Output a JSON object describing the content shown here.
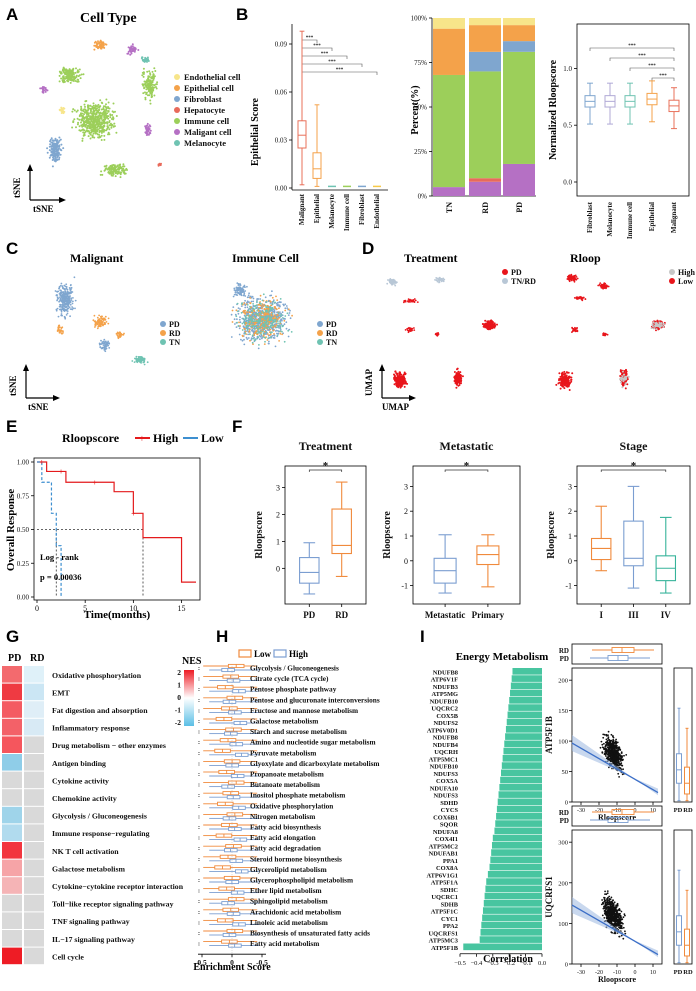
{
  "panels": {
    "A": {
      "letter": "A",
      "title": "Cell Type",
      "xaxis": "tSNE",
      "yaxis": "tSNE",
      "legend": [
        {
          "label": "Endothelial cell",
          "color": "#f7e58a"
        },
        {
          "label": "Epithelial cell",
          "color": "#f4a24a"
        },
        {
          "label": "Fibroblast",
          "color": "#7fa6cf"
        },
        {
          "label": "Hepatocyte",
          "color": "#e86a5b"
        },
        {
          "label": "Immune cell",
          "color": "#9ccf5a"
        },
        {
          "label": "Maligant cell",
          "color": "#b570c4"
        },
        {
          "label": "Melanocyte",
          "color": "#6fc3b2"
        }
      ]
    },
    "B": {
      "letter": "B",
      "epithelial": {
        "ylabel": "Epithelial Score",
        "categories": [
          "Malignant",
          "Epithelial",
          "Melanocyte",
          "Immune cell",
          "Fibroblast",
          "Endothelial"
        ],
        "yticks": [
          "0.00",
          "0.03",
          "0.06",
          "0.09"
        ],
        "sig": "***"
      },
      "stacked": {
        "ylabel": "Percent(%)",
        "categories": [
          "TN",
          "RD",
          "PD"
        ],
        "yticks": [
          "0%",
          "25%",
          "50%",
          "75%",
          "100%"
        ]
      },
      "rloop": {
        "ylabel": "Normalized Rloopscore",
        "categories": [
          "Fibroblast",
          "Melanocyte",
          "Immune cell",
          "Epithelial",
          "Malignant"
        ],
        "yticks": [
          "0.0",
          "0.5",
          "1.0"
        ],
        "sig": "***"
      }
    },
    "C": {
      "letter": "C",
      "left_title": "Malignant",
      "right_title": "Immune Cell",
      "legend": [
        {
          "label": "PD",
          "color": "#7fa6cf"
        },
        {
          "label": "RD",
          "color": "#f4a24a"
        },
        {
          "label": "TN",
          "color": "#6fc3b2"
        }
      ],
      "xaxis": "tSNE",
      "yaxis": "tSNE"
    },
    "D": {
      "letter": "D",
      "left_title": "Treatment",
      "right_title": "Rloop",
      "left_legend": [
        {
          "label": "PD",
          "color": "#e8151b"
        },
        {
          "label": "TN/RD",
          "color": "#b8c7d6"
        }
      ],
      "right_legend": [
        {
          "label": "High",
          "color": "#c7c7c7"
        },
        {
          "label": "Low",
          "color": "#e8151b"
        }
      ],
      "xaxis": "UMAP",
      "yaxis": "UMAP"
    },
    "E": {
      "letter": "E",
      "legend_title": "Rloopscore",
      "legend_high": "High",
      "legend_low": "Low",
      "ylabel": "Overall Response",
      "xlabel": "Time(months)",
      "yticks": [
        "0.00",
        "0.25",
        "0.50",
        "0.75",
        "1.00"
      ],
      "xticks": [
        "0",
        "5",
        "10",
        "15"
      ],
      "test_name": "Log - rank",
      "p_value": "p = 0.00036"
    },
    "F": {
      "letter": "F",
      "ylabel": "Rloopscore",
      "treatment": {
        "title": "Treatment",
        "categories": [
          "PD",
          "RD"
        ],
        "yticks": [
          "0",
          "1",
          "2",
          "3"
        ],
        "sig": "*"
      },
      "metastatic": {
        "title": "Metastatic",
        "categories": [
          "Metastatic",
          "Primary"
        ],
        "yticks": [
          "-1",
          "0",
          "1",
          "2",
          "3"
        ],
        "sig": "*"
      },
      "stage": {
        "title": "Stage",
        "categories": [
          "I",
          "III",
          "IV"
        ],
        "yticks": [
          "-1",
          "0",
          "1",
          "2",
          "3"
        ],
        "sig": "*"
      }
    },
    "G": {
      "letter": "G",
      "col_labels": [
        "PD",
        "RD"
      ],
      "legend_title": "NES",
      "legend_ticks": [
        "2",
        "1",
        "0",
        "-1",
        "-2"
      ],
      "rows": [
        {
          "label": "Oxidative phosphorylation",
          "pd": "#f36a6e",
          "rd": "#dff1f9"
        },
        {
          "label": "EMT",
          "pd": "#ef3a42",
          "rd": "#cbe6f4"
        },
        {
          "label": "Fat digestion and absorption",
          "pd": "#f45b62",
          "rd": "#dfeef7"
        },
        {
          "label": "Inflammatory response",
          "pd": "#f36168",
          "rd": "#d8eaf5"
        },
        {
          "label": "Drug metabolism − other enzymes",
          "pd": "#f5565d",
          "rd": "#d9d9d9"
        },
        {
          "label": "Antigen binding",
          "pd": "#8fcde8",
          "rd": "#d9d9d9"
        },
        {
          "label": "Cytokine activity",
          "pd": "#d9d9d9",
          "rd": "#d9d9d9"
        },
        {
          "label": "Chemokine activity",
          "pd": "#d9d9d9",
          "rd": "#d9d9d9"
        },
        {
          "label": "Glycolysis / Gluconeogenesis",
          "pd": "#9fd4ea",
          "rd": "#d9d9d9"
        },
        {
          "label": "Immune response−regulating",
          "pd": "#b1dbee",
          "rd": "#d9d9d9"
        },
        {
          "label": "NK T cell activation",
          "pd": "#f2353e",
          "rd": "#d9d9d9"
        },
        {
          "label": "Galactose metabolism",
          "pd": "#f6a4a7",
          "rd": "#d9d9d9"
        },
        {
          "label": "Cytokine−cytokine receptor interaction",
          "pd": "#f5b4b6",
          "rd": "#d9d9d9"
        },
        {
          "label": "Toll−like receptor signaling pathway",
          "pd": "#d9d9d9",
          "rd": "#d9d9d9"
        },
        {
          "label": "TNF signaling pathway",
          "pd": "#d9d9d9",
          "rd": "#d9d9d9"
        },
        {
          "label": "IL−17 signaling pathway",
          "pd": "#d9d9d9",
          "rd": "#d9d9d9"
        },
        {
          "label": "Cell cycle",
          "pd": "#ee1c25",
          "rd": "#d9d9d9"
        }
      ]
    },
    "H": {
      "letter": "H",
      "legend_low": "Low",
      "legend_high": "High",
      "xlabel": "Enrichment Score",
      "xticks": [
        "0.5",
        "0",
        "-0.5"
      ],
      "rows": [
        "Glycolysis / Gluconeogenesis",
        "Citrate cycle (TCA cycle)",
        "Pentose phosphate pathway",
        "Pentose and glucuronate interconversions",
        "Fructose and mannose metabolism",
        "Galactose metabolism",
        "Starch and sucrose metabolism",
        "Amino and nucleotide sugar metabolism",
        "Pyruvate metabolism",
        "Glyoxylate and dicarboxylate metabolism",
        "Propanoate metabolism",
        "Butanoate metabolism",
        "Inositol phosphate metabolism",
        "Oxidative phosphorylation",
        "Nitrogen metabolism",
        "Fatty acid biosynthesis",
        "Fatty acid elongation",
        "Fatty acid degradation",
        "Steroid hormone biosynthesis",
        "Glycerolipid metabolism",
        "Glycerophospholipid metabolism",
        "Ether lipid metabolism",
        "Sphingolipid metabolism",
        "Arachidonic acid metabolism",
        "Linoleic acid metabolism",
        "Biosynthesis of unsaturated fatty acids",
        "Fatty acid metabolism"
      ]
    },
    "I": {
      "letter": "I",
      "title": "Energy Metabolism",
      "xlabel": "Correlation",
      "xticks": [
        "−0.5",
        "−0.4",
        "−0.3",
        "−0.2",
        "−0.1",
        "0.0"
      ],
      "scatter_top": {
        "ylabel": "ATP5F1B",
        "xlabel": "Rloopscore",
        "yticks": [
          "0",
          "50",
          "100",
          "150",
          "200"
        ],
        "xticks": [
          "-30",
          "-20",
          "-10",
          "0",
          "10"
        ],
        "box_labels": [
          "RD",
          "PD"
        ],
        "side_labels": [
          "PD",
          "RD"
        ]
      },
      "scatter_bottom": {
        "ylabel": "UQCRFS1",
        "xlabel": "Rloopscore",
        "yticks": [
          "0",
          "100",
          "200",
          "300"
        ],
        "xticks": [
          "-30",
          "-20",
          "-10",
          "0",
          "10"
        ],
        "box_labels": [
          "RD",
          "PD"
        ],
        "side_labels": [
          "PD",
          "RD"
        ]
      }
    }
  },
  "chart_data": [
    {
      "type": "bar",
      "title": "Energy Metabolism",
      "xlabel": "Correlation",
      "categories": [
        "NDUFB8",
        "ATP6V1F",
        "NDUFB3",
        "ATP5MG",
        "NDUFB10",
        "UQCRC2",
        "COX5B",
        "NDUFS2",
        "ATP6V0D1",
        "NDUFB8",
        "NDUFB4",
        "UQCRH",
        "ATP5MC1",
        "NDUFB10",
        "NDUFS3",
        "COX5A",
        "NDUFA10",
        "NDUFS3",
        "SDHD",
        "CYCS",
        "COX6B1",
        "SQOR",
        "NDUFA8",
        "COX4I1",
        "ATP5MC2",
        "NDUFAB1",
        "PPA1",
        "COX8A",
        "ATP6V1G1",
        "ATP5F1A",
        "SDHC",
        "UQCRC1",
        "SDHB",
        "ATP5F1C",
        "CYC1",
        "PPA2",
        "UQCRFS1",
        "ATP5MC3",
        "ATP5F1B"
      ],
      "values": [
        -0.18,
        -0.185,
        -0.19,
        -0.195,
        -0.2,
        -0.205,
        -0.21,
        -0.215,
        -0.22,
        -0.225,
        -0.23,
        -0.235,
        -0.24,
        -0.245,
        -0.25,
        -0.255,
        -0.26,
        -0.265,
        -0.27,
        -0.275,
        -0.28,
        -0.285,
        -0.29,
        -0.3,
        -0.305,
        -0.31,
        -0.315,
        -0.32,
        -0.33,
        -0.34,
        -0.345,
        -0.35,
        -0.355,
        -0.36,
        -0.365,
        -0.37,
        -0.375,
        -0.38,
        -0.48
      ],
      "xlim": [
        -0.5,
        0.0
      ]
    },
    {
      "type": "bar",
      "title": "",
      "ylabel": "Percent(%)",
      "categories": [
        "TN",
        "RD",
        "PD"
      ],
      "series": [
        {
          "name": "Maligant cell",
          "values": [
            5,
            8,
            18
          ]
        },
        {
          "name": "Hepatocyte",
          "values": [
            0,
            2,
            0
          ]
        },
        {
          "name": "Immune cell",
          "values": [
            63,
            60,
            63
          ]
        },
        {
          "name": "Fibroblast",
          "values": [
            0,
            11,
            6
          ]
        },
        {
          "name": "Epithelial cell",
          "values": [
            26,
            15,
            9
          ]
        },
        {
          "name": "Endothelial cell",
          "values": [
            6,
            4,
            4
          ]
        }
      ],
      "ylim": [
        0,
        100
      ]
    },
    {
      "type": "line",
      "title": "",
      "xlabel": "Time(months)",
      "ylabel": "Overall Response",
      "series": [
        {
          "name": "High",
          "x": [
            0,
            1,
            2,
            3,
            8,
            10,
            11,
            15,
            16.5
          ],
          "y": [
            1.0,
            0.93,
            0.93,
            0.85,
            0.78,
            0.62,
            0.44,
            0.11,
            0.11
          ]
        },
        {
          "name": "Low",
          "x": [
            0,
            0.5,
            1.5,
            2,
            2.5
          ],
          "y": [
            1.0,
            0.85,
            0.62,
            0.38,
            0.0
          ]
        }
      ],
      "xlim": [
        0,
        16.5
      ],
      "ylim": [
        0,
        1
      ]
    }
  ]
}
